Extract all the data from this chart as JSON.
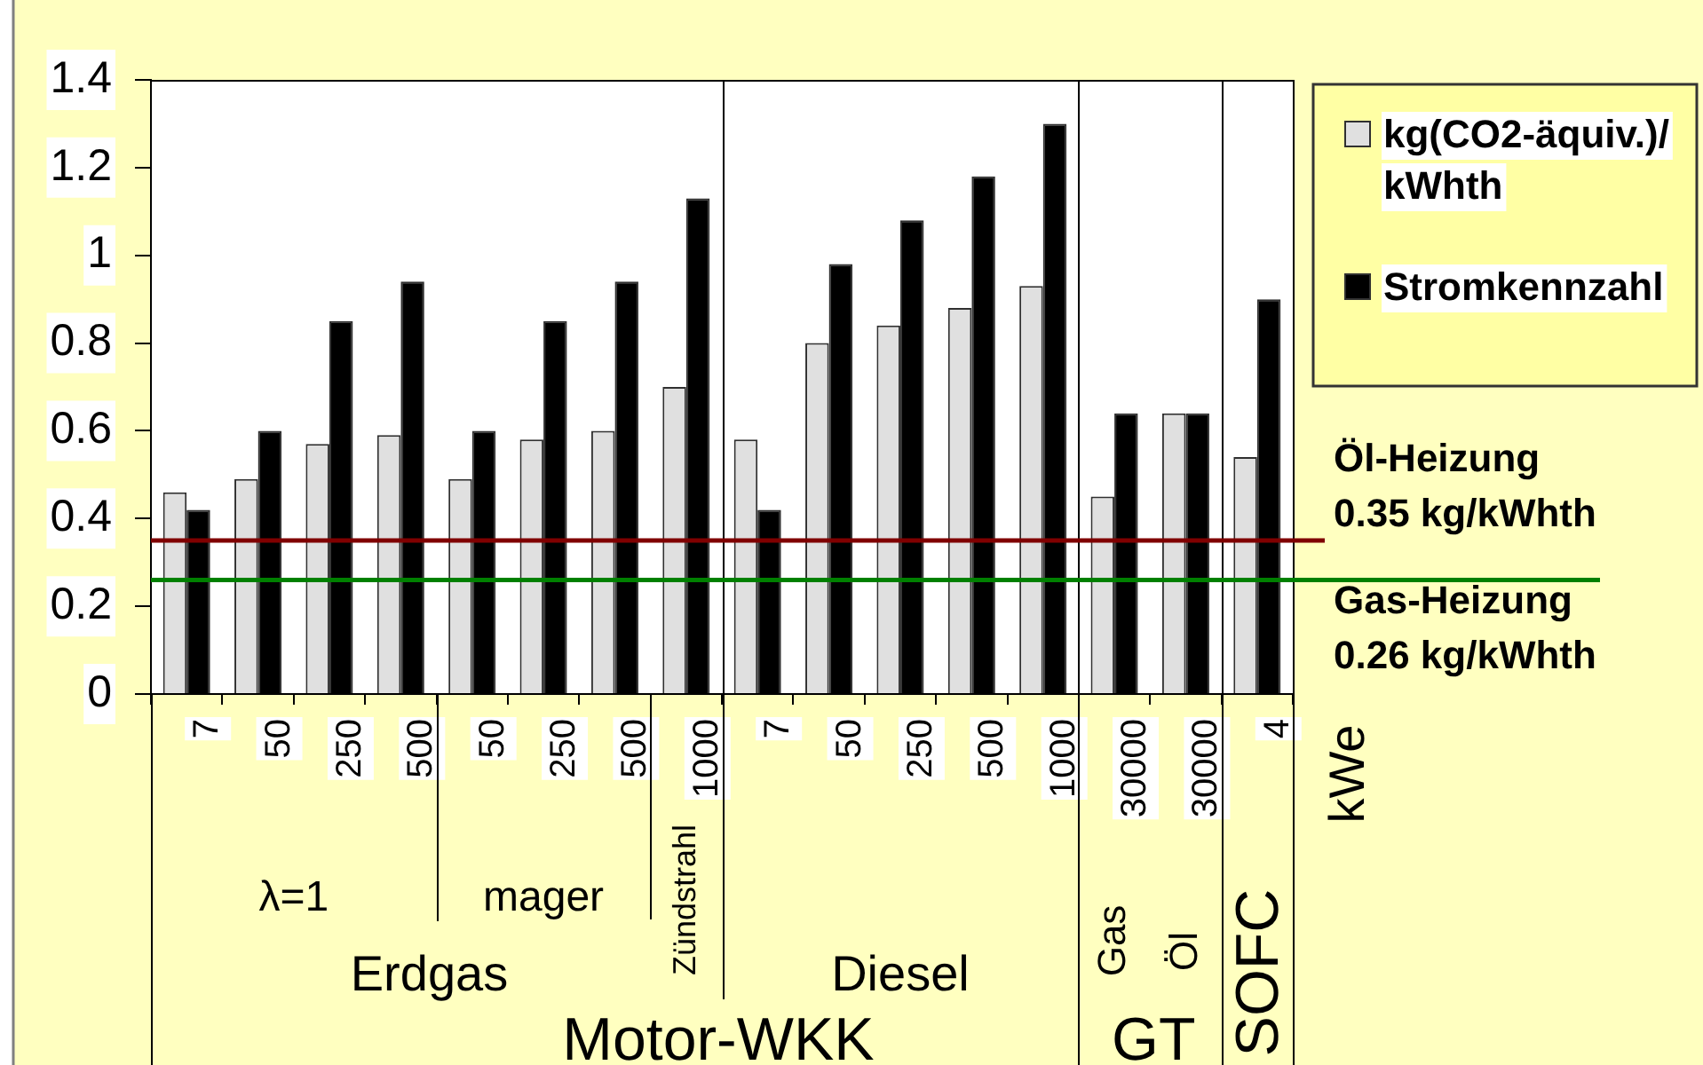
{
  "chart_data": {
    "type": "bar",
    "categories": [
      "7",
      "50",
      "250",
      "500",
      "50",
      "250",
      "500",
      "1000",
      "7",
      "50",
      "250",
      "500",
      "1000",
      "30000",
      "30000",
      "4"
    ],
    "series": [
      {
        "name": "kg(CO2-äquiv.)/kWhth",
        "color": "#e0e0e0",
        "values": [
          0.46,
          0.49,
          0.57,
          0.59,
          0.49,
          0.58,
          0.6,
          0.7,
          0.58,
          0.8,
          0.84,
          0.88,
          0.93,
          0.45,
          0.64,
          0.54
        ]
      },
      {
        "name": "Stromkennzahl",
        "color": "#000000",
        "values": [
          0.42,
          0.6,
          0.85,
          0.94,
          0.6,
          0.85,
          0.94,
          1.13,
          0.42,
          0.98,
          1.08,
          1.18,
          1.3,
          0.64,
          0.64,
          0.9
        ]
      }
    ],
    "ylim": [
      0,
      1.4
    ],
    "yticks": [
      0,
      0.2,
      0.4,
      0.6,
      0.8,
      1,
      1.2,
      1.4
    ],
    "grid": false,
    "legend": "top right",
    "ref_lines": [
      {
        "axis": "y",
        "value": 0.35,
        "label": "Öl-Heizung\n0.35 kg/kWhth",
        "color": "#800000"
      },
      {
        "axis": "y",
        "value": 0.26,
        "label": "Gas-Heizung\n0.26 kg/kWhth",
        "color": "#008000"
      }
    ],
    "annotations": [
      "λ=1",
      "mager",
      "Zündstrahl",
      "Erdgas",
      "Diesel",
      "Motor-WKK",
      "Gas",
      "Öl",
      "GT",
      "SOFC",
      "kWe"
    ]
  }
}
